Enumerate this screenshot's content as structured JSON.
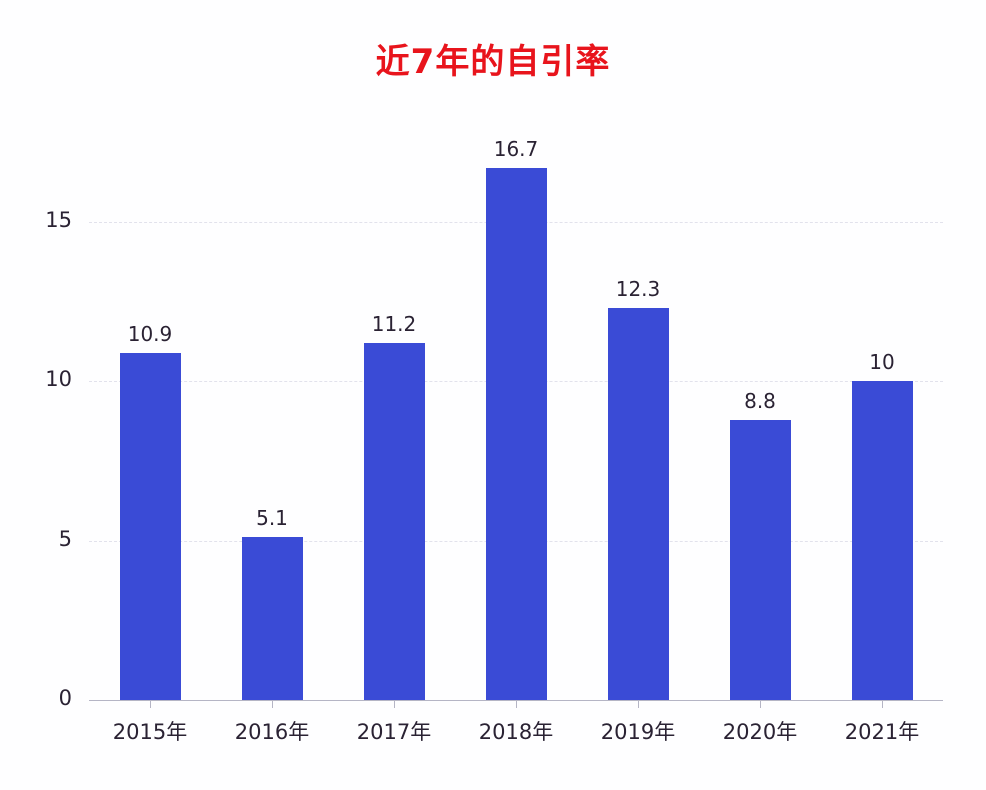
{
  "chart_data": {
    "type": "bar",
    "title": "近7年的自引率",
    "categories": [
      "2015年",
      "2016年",
      "2017年",
      "2018年",
      "2019年",
      "2020年",
      "2021年"
    ],
    "values": [
      10.9,
      5.1,
      11.2,
      16.7,
      12.3,
      8.8,
      10
    ],
    "value_labels": [
      "10.9",
      "5.1",
      "11.2",
      "16.7",
      "12.3",
      "8.8",
      "10"
    ],
    "xlabel": "",
    "ylabel": "",
    "ylim": [
      0,
      17.5
    ],
    "yticks": [
      "0",
      "5",
      "10",
      "15"
    ],
    "ytick_values": [
      0,
      5,
      10,
      15
    ],
    "grid": true,
    "legend": null,
    "colors": {
      "bar": "#3a4bd6",
      "title": "#e8141c",
      "text": "#2a2233"
    }
  }
}
